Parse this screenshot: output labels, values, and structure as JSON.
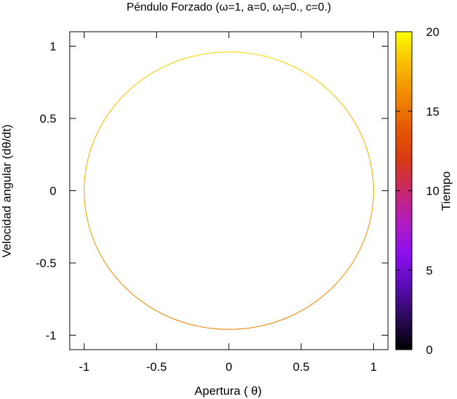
{
  "chart_data": {
    "type": "scatter",
    "title": "Péndulo Forzado (ω=1, a=0,  ω_f=0., c=0.)",
    "title_parts": {
      "prefix": "Péndulo Forzado (ω=1, a=0,  ω",
      "subscript": "f",
      "suffix": "=0., c=0.)"
    },
    "xlabel": "Apertura ( θ)",
    "ylabel": "Velocidad angular (dθ/dt)",
    "xlim": [
      -1.1,
      1.1
    ],
    "ylim": [
      -1.1,
      1.1
    ],
    "x_ticks": [
      -1,
      -0.5,
      0,
      0.5,
      1
    ],
    "x_tick_labels": [
      "-1",
      "-0.5",
      "0",
      "0.5",
      "1"
    ],
    "y_ticks": [
      -1,
      -0.5,
      0,
      0.5,
      1
    ],
    "y_tick_labels": [
      "-1",
      "-0.5",
      "0",
      "0.5",
      "1"
    ],
    "grid": false,
    "series": [
      {
        "curve": "closed phase-space orbit",
        "x_amplitude": 1.0,
        "y_amplitude": 0.96,
        "t_range": [
          0,
          20
        ],
        "color_by": "time"
      }
    ],
    "colorbar": {
      "label": "Tiempo",
      "range": [
        0,
        20
      ],
      "ticks": [
        0,
        5,
        10,
        15,
        20
      ],
      "tick_labels": [
        "0",
        "5",
        "10",
        "15",
        "20"
      ],
      "colormap": [
        "#000000",
        "#2a0a58",
        "#5a0cb4",
        "#8a10f0",
        "#b01cc0",
        "#c8286a",
        "#d83a12",
        "#e65a00",
        "#f08a00",
        "#f8bc00",
        "#ffff00"
      ],
      "position": "right"
    },
    "line_color_visible": "#e07a12"
  }
}
